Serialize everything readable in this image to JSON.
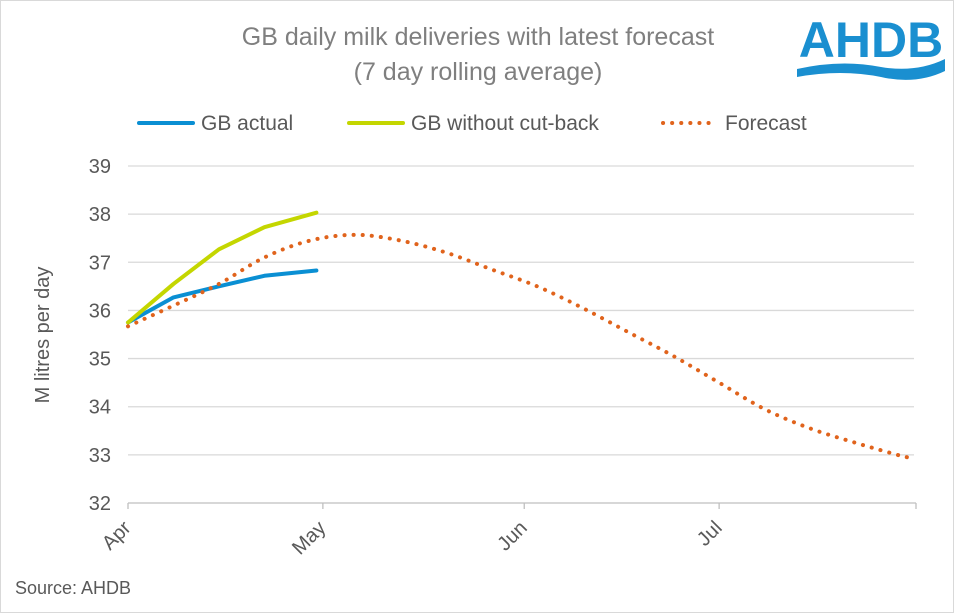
{
  "logo": {
    "text": "AHDB",
    "color": "#1a8fd0"
  },
  "source": "Source: AHDB",
  "chart_data": {
    "type": "line",
    "title": "GB daily milk deliveries with latest forecast",
    "subtitle": "(7 day rolling average)",
    "xlabel": "",
    "ylabel": "M litres per day",
    "ylim": [
      32,
      39
    ],
    "yticks": [
      32,
      33,
      34,
      35,
      36,
      37,
      38,
      39
    ],
    "x_unit": "days since 1 Apr",
    "xlim": [
      0,
      121
    ],
    "xticks": [
      {
        "label": "Apr",
        "day": 0
      },
      {
        "label": "May",
        "day": 30
      },
      {
        "label": "Jun",
        "day": 61
      },
      {
        "label": "Jul",
        "day": 91
      }
    ],
    "grid": true,
    "legend": "top",
    "series": [
      {
        "name": "GB actual",
        "color": "#0a8fd3",
        "style": "solid",
        "x": [
          0,
          7,
          14,
          21,
          29
        ],
        "values": [
          35.75,
          36.27,
          36.5,
          36.72,
          36.83
        ]
      },
      {
        "name": "GB without cut-back",
        "color": "#c4d600",
        "style": "solid",
        "x": [
          0,
          7,
          14,
          21,
          29
        ],
        "values": [
          35.75,
          36.55,
          37.27,
          37.73,
          38.03
        ]
      },
      {
        "name": "Forecast",
        "color": "#e0631c",
        "style": "dotted",
        "x": [
          0,
          7,
          14,
          21,
          28,
          35,
          42,
          49,
          56,
          63,
          70,
          77,
          84,
          91,
          98,
          105,
          112,
          119,
          121
        ],
        "values": [
          35.67,
          36.1,
          36.55,
          37.1,
          37.45,
          37.57,
          37.45,
          37.2,
          36.85,
          36.5,
          36.05,
          35.55,
          35.05,
          34.5,
          33.95,
          33.55,
          33.25,
          32.98,
          32.93
        ]
      }
    ]
  }
}
